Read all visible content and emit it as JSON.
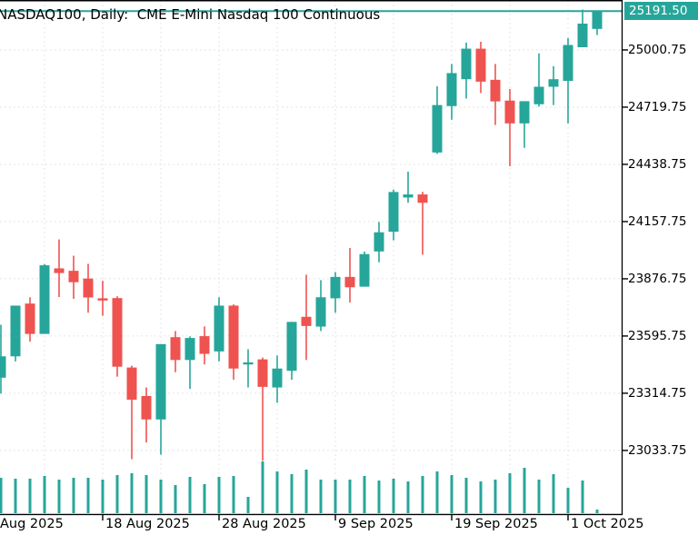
{
  "title": "NASDAQ100, Daily:  CME E-Mini Nasdaq 100 Continuous",
  "price_badge": "25191.50",
  "colors": {
    "up": "#26a69a",
    "down": "#ef5350",
    "volume": "#26a69a",
    "price_line": "#26a69a",
    "badge_bg": "#26a69a",
    "badge_text": "#ffffff",
    "grid": "#e5e5e5",
    "axis": "#000000",
    "background": "#ffffff",
    "text": "#000000"
  },
  "chart_data": {
    "type": "candlestick",
    "symbol": "NASDAQ100",
    "timeframe": "Daily",
    "description": "CME E-Mini Nasdaq 100 Continuous",
    "grid": true,
    "ylim": [
      22721,
      25246
    ],
    "current_price": 25191.5,
    "price_ticks": [
      {
        "label": "25000.75",
        "value": 25000.75
      },
      {
        "label": "24719.75",
        "value": 24719.75
      },
      {
        "label": "24438.75",
        "value": 24438.75
      },
      {
        "label": "24157.75",
        "value": 24157.75
      },
      {
        "label": "23876.75",
        "value": 23876.75
      },
      {
        "label": "23595.75",
        "value": 23595.75
      },
      {
        "label": "23314.75",
        "value": 23314.75
      },
      {
        "label": "23033.75",
        "value": 23033.75
      }
    ],
    "time_labels": [
      {
        "text": "Aug 2025",
        "at_candle": 0,
        "has_tick": false
      },
      {
        "text": "18 Aug 2025",
        "at_candle": 7,
        "has_tick": true
      },
      {
        "text": "28 Aug 2025",
        "at_candle": 15,
        "has_tick": true
      },
      {
        "text": "9 Sep 2025",
        "at_candle": 23,
        "has_tick": true
      },
      {
        "text": "19 Sep 2025",
        "at_candle": 31,
        "has_tick": true
      },
      {
        "text": "1 Oct 2025",
        "at_candle": 39,
        "has_tick": true
      }
    ],
    "candles_format": [
      "open",
      "high",
      "low",
      "close"
    ],
    "candles": [
      [
        23391,
        23651,
        23313,
        23496
      ],
      [
        23496,
        23745,
        23471,
        23745
      ],
      [
        23755,
        23786,
        23568,
        23606
      ],
      [
        23606,
        23949,
        23606,
        23943
      ],
      [
        23928,
        24070,
        23787,
        23905
      ],
      [
        23916,
        23990,
        23778,
        23860
      ],
      [
        23878,
        23950,
        23710,
        23785
      ],
      [
        23781,
        23867,
        23695,
        23770
      ],
      [
        23782,
        23791,
        23396,
        23445
      ],
      [
        23441,
        23450,
        22991,
        23283
      ],
      [
        23301,
        23343,
        23073,
        23186
      ],
      [
        23186,
        23556,
        23013,
        23556
      ],
      [
        23590,
        23620,
        23418,
        23478
      ],
      [
        23478,
        23594,
        23336,
        23586
      ],
      [
        23595,
        23643,
        23456,
        23508
      ],
      [
        23520,
        23786,
        23471,
        23745
      ],
      [
        23745,
        23751,
        23381,
        23436
      ],
      [
        23456,
        23531,
        23343,
        23466
      ],
      [
        23481,
        23490,
        22983,
        23346
      ],
      [
        23343,
        23500,
        23268,
        23436
      ],
      [
        23425,
        23665,
        23381,
        23665
      ],
      [
        23690,
        23897,
        23478,
        23645
      ],
      [
        23642,
        23870,
        23620,
        23786
      ],
      [
        23781,
        23910,
        23710,
        23886
      ],
      [
        23886,
        24028,
        23760,
        23835
      ],
      [
        23838,
        24011,
        23838,
        23998
      ],
      [
        24011,
        24156,
        23958,
        24105
      ],
      [
        24108,
        24315,
        24066,
        24303
      ],
      [
        24276,
        24403,
        24250,
        24291
      ],
      [
        24291,
        24304,
        23995,
        24250
      ],
      [
        24497,
        24822,
        24490,
        24730
      ],
      [
        24725,
        24932,
        24658,
        24887
      ],
      [
        24857,
        25037,
        24762,
        25007
      ],
      [
        25007,
        25041,
        24789,
        24845
      ],
      [
        24854,
        24932,
        24632,
        24748
      ],
      [
        24752,
        24809,
        24430,
        24640
      ],
      [
        24640,
        24749,
        24520,
        24749
      ],
      [
        24734,
        24984,
        24722,
        24820
      ],
      [
        24820,
        24921,
        24730,
        24857
      ],
      [
        24849,
        25059,
        24640,
        25025
      ],
      [
        25014,
        25199,
        25014,
        25130
      ],
      [
        25104,
        25194,
        25074,
        25191.5
      ]
    ],
    "volume": [
      39,
      38,
      38,
      41,
      37,
      39,
      39,
      37,
      42,
      44,
      42,
      37,
      31,
      40,
      32,
      40,
      41,
      18,
      57,
      46,
      43,
      48,
      37,
      37,
      37,
      41,
      36,
      38,
      35,
      41,
      46,
      42,
      39,
      35,
      37,
      44,
      50,
      37,
      43,
      28,
      36,
      4
    ]
  }
}
